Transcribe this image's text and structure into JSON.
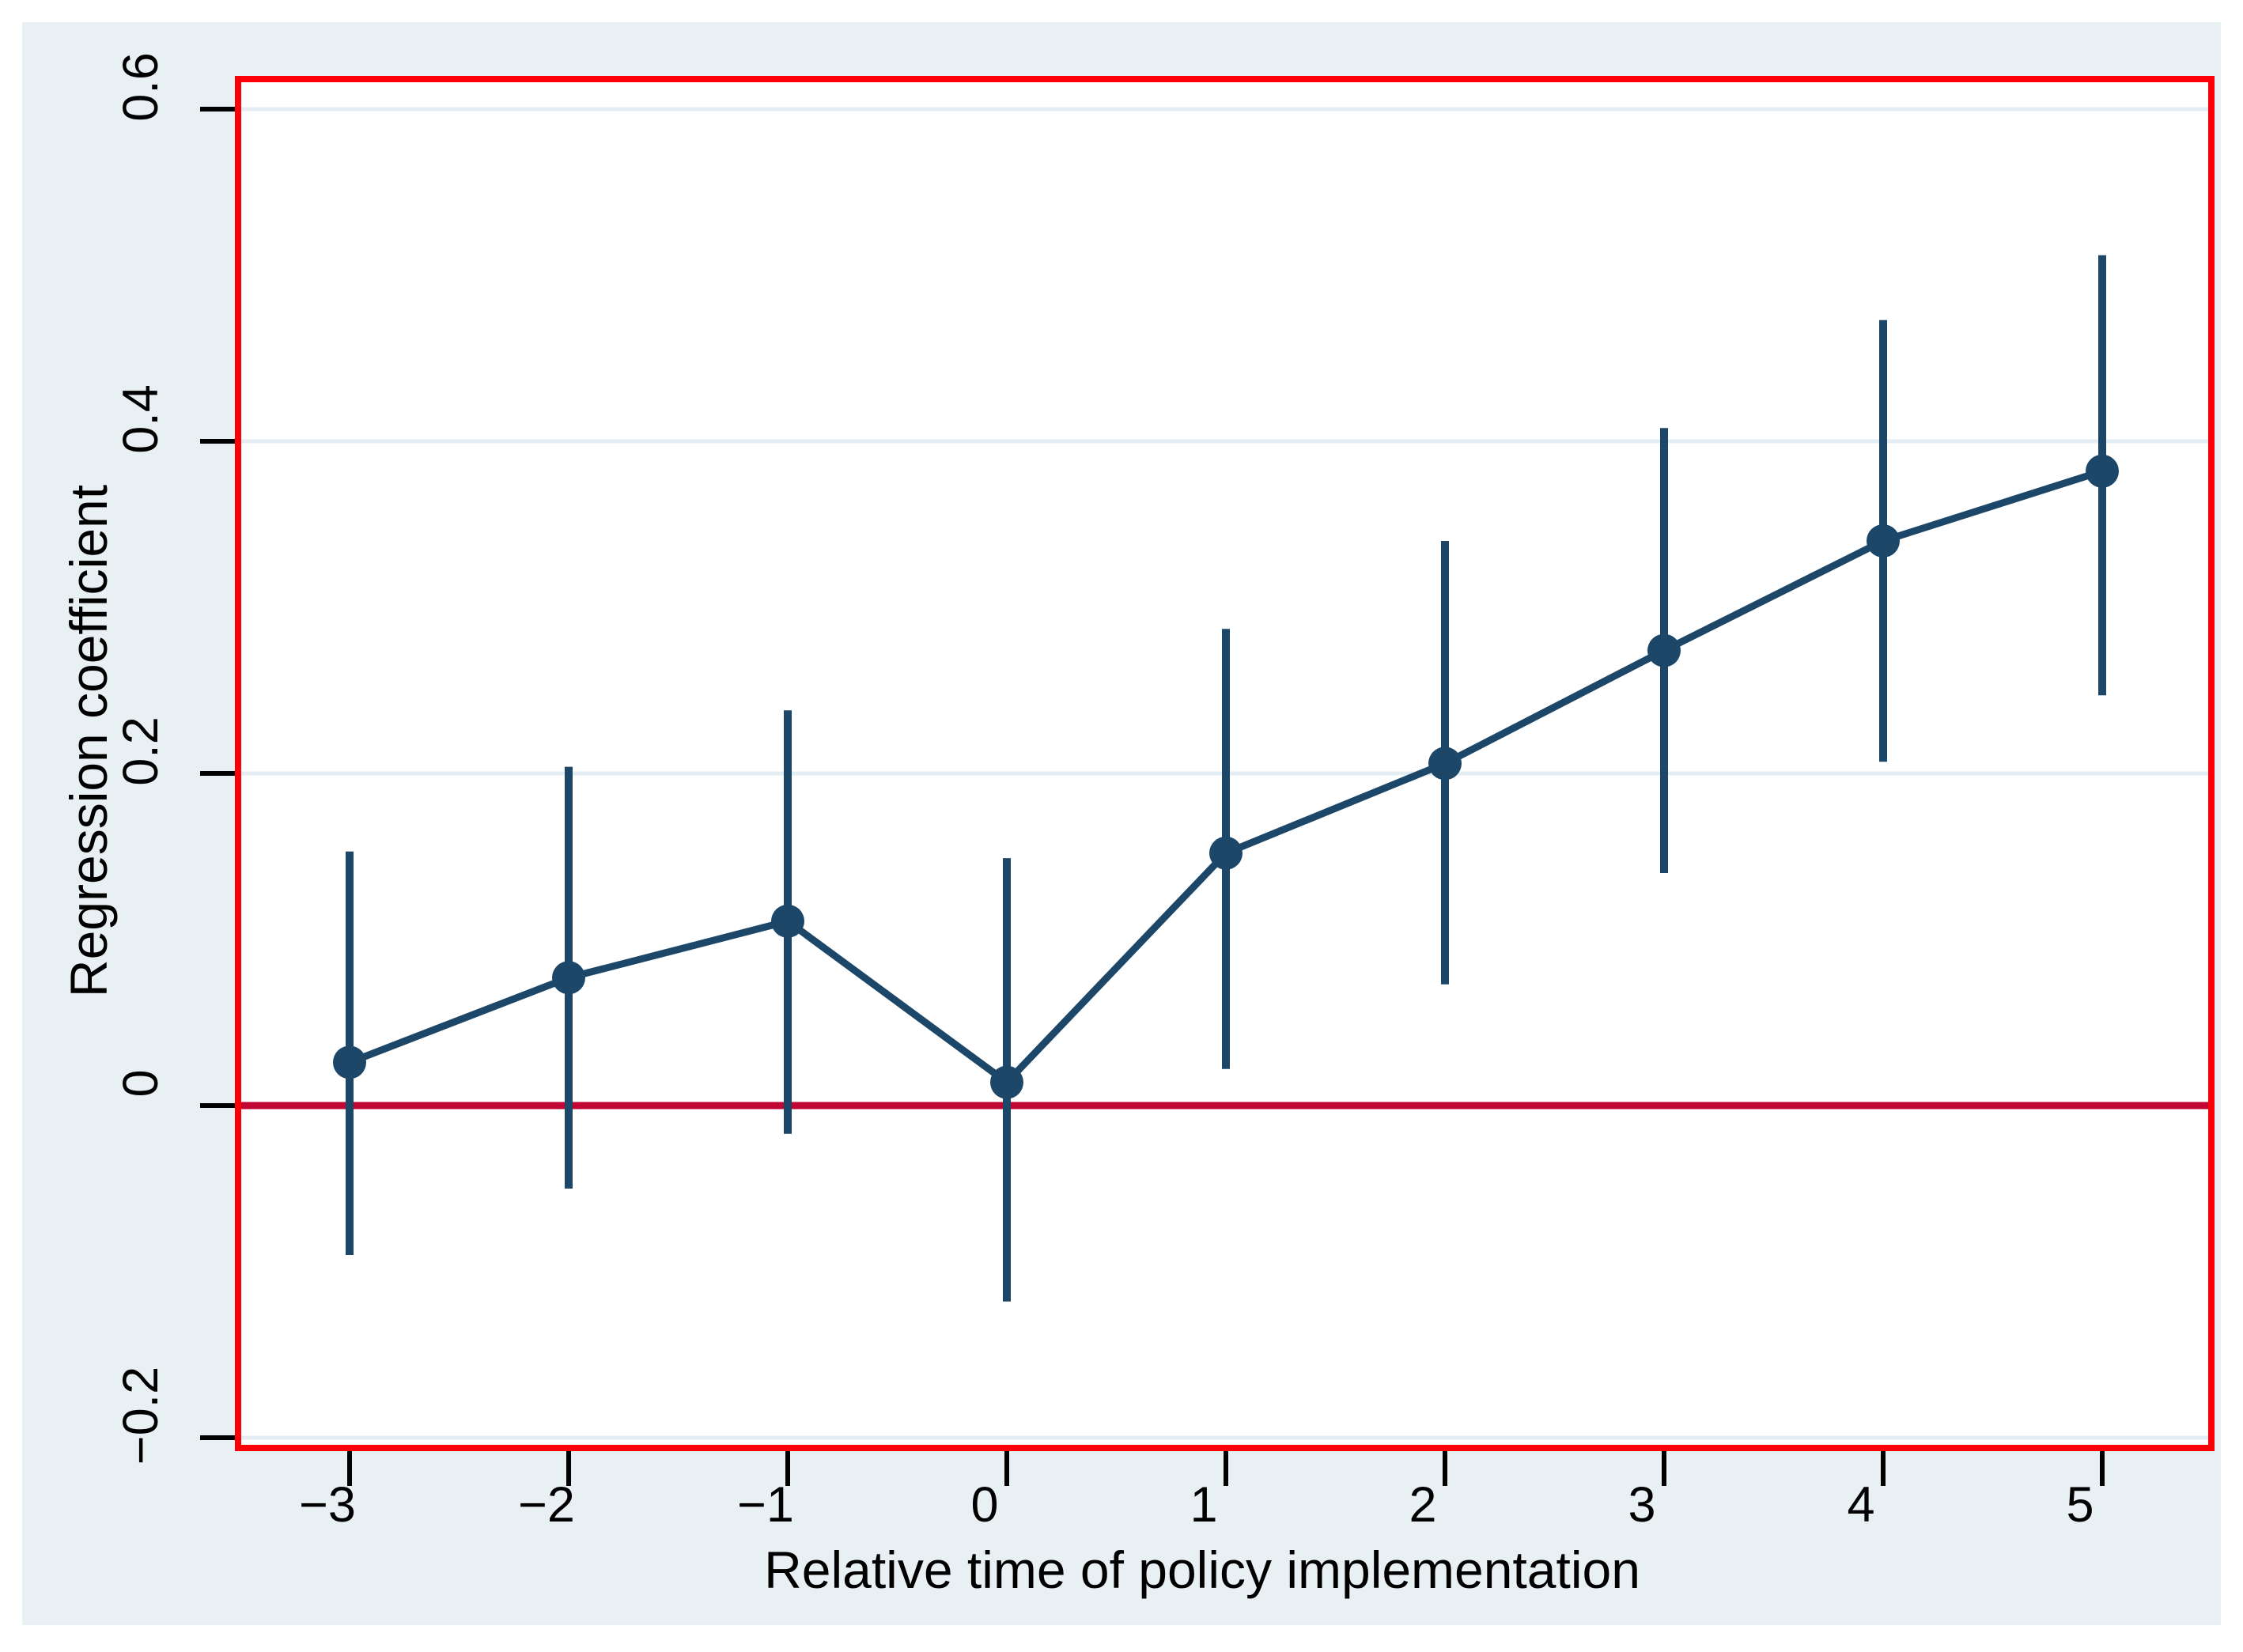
{
  "style": {
    "page_background": "#ffffff",
    "graph_region_background": "#e9f0f3",
    "plot_background": "#ffffff",
    "plot_border_color": "#fb0007",
    "zero_line_color": "#c10534",
    "gridline_color": "#e2edf4",
    "series_color": "#1d4769",
    "tick_color": "#000000",
    "text_color": "#000000"
  },
  "chart_data": {
    "type": "scatter",
    "title": "",
    "xlabel": "Relative time of policy implementation",
    "ylabel": "Regression coefficient",
    "x": [
      -3,
      -2,
      -1,
      0,
      1,
      2,
      3,
      4,
      5
    ],
    "series": [
      {
        "name": "coefficient",
        "values": [
          0.026,
          0.077,
          0.111,
          0.014,
          0.152,
          0.206,
          0.274,
          0.34,
          0.382
        ]
      },
      {
        "name": "ci_upper",
        "values": [
          0.153,
          0.204,
          0.238,
          0.149,
          0.287,
          0.34,
          0.408,
          0.473,
          0.512
        ]
      },
      {
        "name": "ci_lower",
        "values": [
          -0.09,
          -0.05,
          -0.017,
          -0.118,
          0.022,
          0.073,
          0.14,
          0.207,
          0.247
        ]
      }
    ],
    "connect_markers": true,
    "marker": "circle",
    "error_bars": true,
    "reference_line_y": 0,
    "x_ticks": {
      "values": [
        -3,
        -2,
        -1,
        0,
        1,
        2,
        3,
        4,
        5
      ],
      "labels": [
        "−3",
        "−2",
        "−1",
        "0",
        "1",
        "2",
        "3",
        "4",
        "5"
      ]
    },
    "y_ticks": {
      "values": [
        0.6,
        0.4,
        0.2,
        0,
        -0.2
      ],
      "labels": [
        "0.6",
        "0.4",
        "0.2",
        "0",
        "−0.2"
      ]
    },
    "grid_y_values": [
      0.6,
      0.4,
      0.2,
      -0.2
    ],
    "grid": true,
    "legend": "none",
    "xlim": [
      -3.51,
      5.49
    ],
    "ylim": [
      -0.206,
      0.618
    ],
    "y_tick_labels_rotated": true
  }
}
